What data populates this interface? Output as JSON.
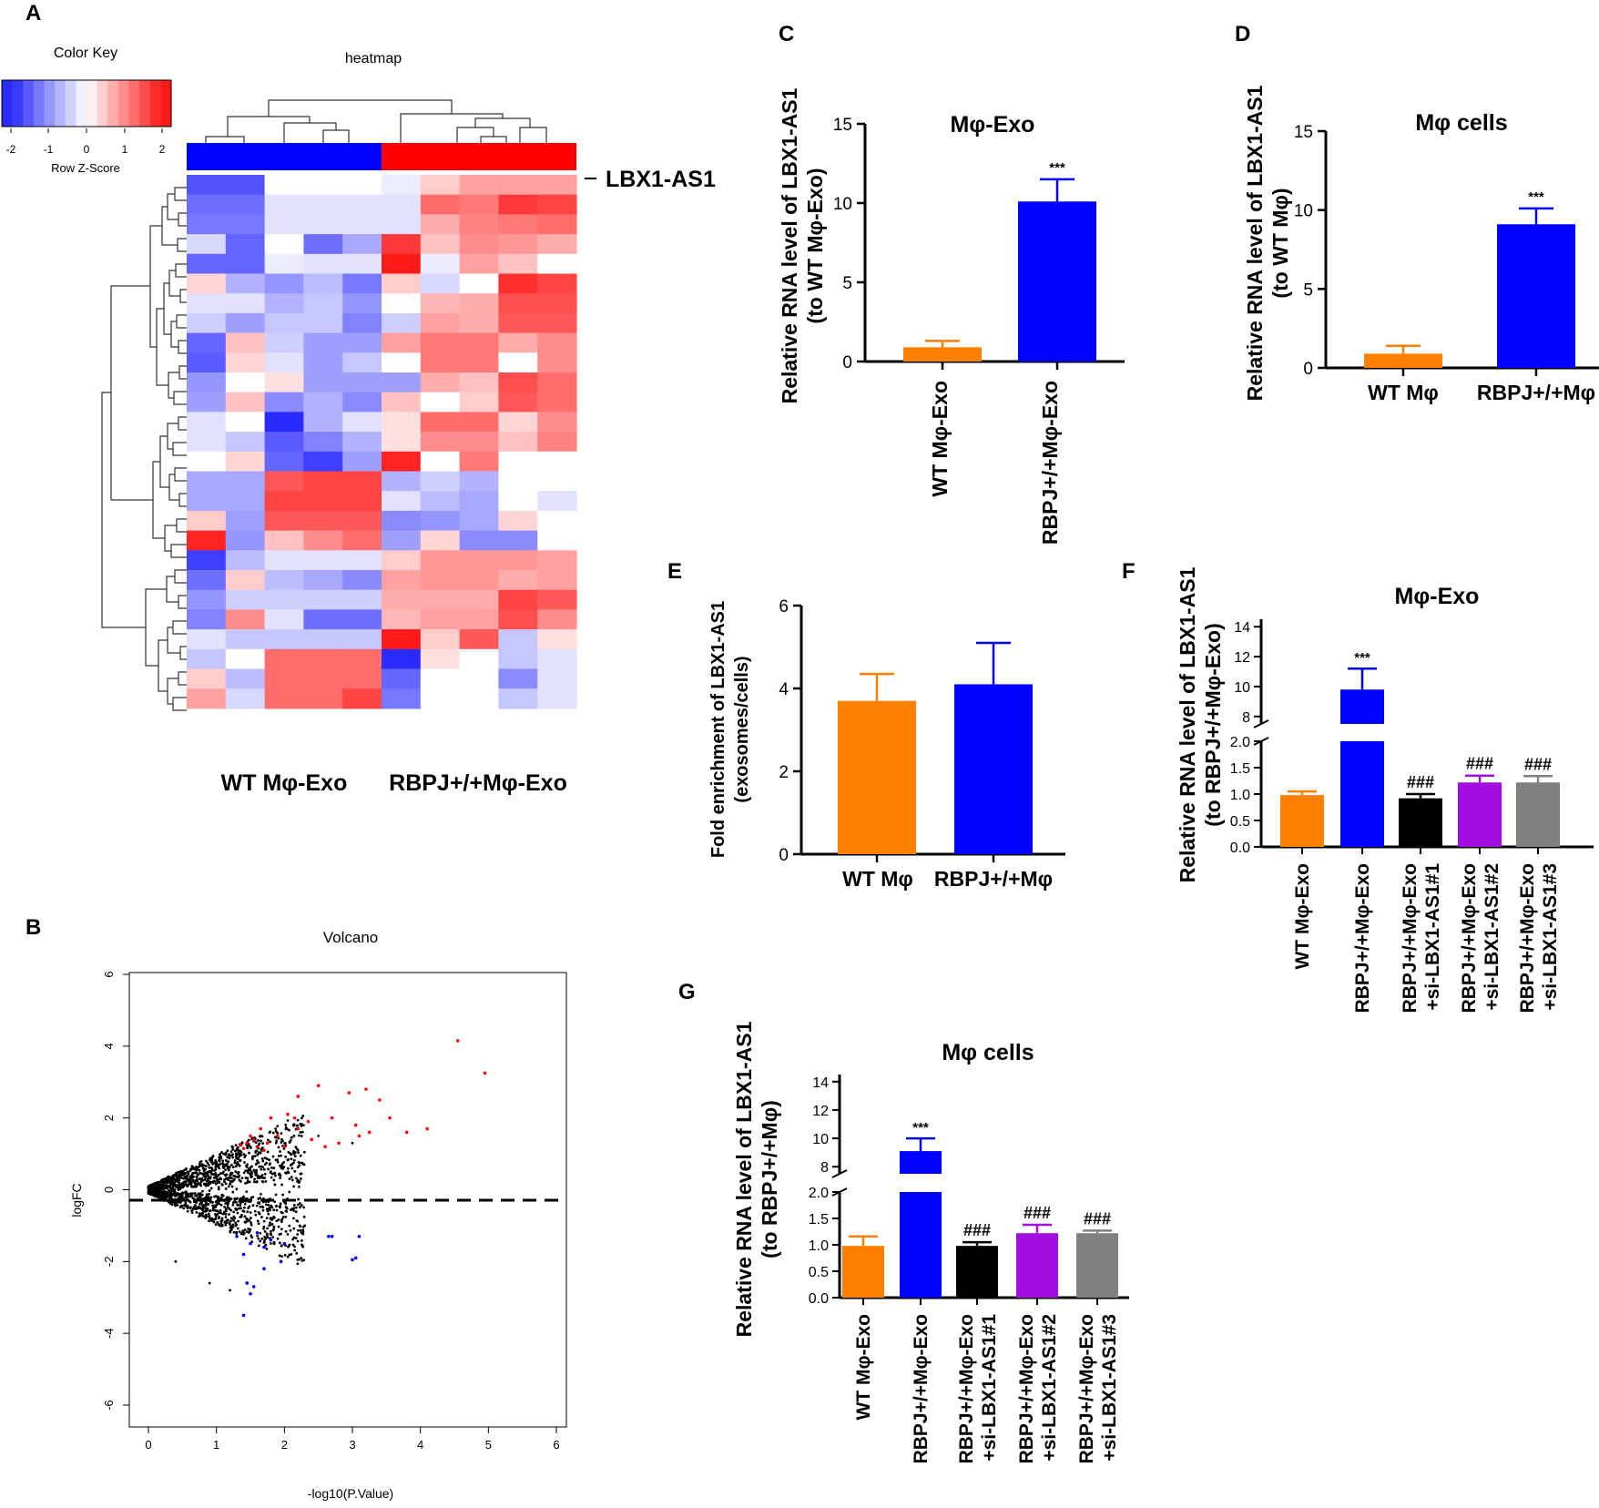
{
  "colors": {
    "orange": "#ff8000",
    "blue": "#0000ff",
    "black": "#000000",
    "purple": "#a40de0",
    "gray": "#808080",
    "heat_low": "#2b2bff",
    "heat_mid": "#ffffff",
    "heat_high": "#ff1a1a"
  },
  "panel_letters": [
    "A",
    "B",
    "C",
    "D",
    "E",
    "F",
    "G"
  ],
  "chart_data": [
    {
      "panel": "A",
      "type": "heatmap",
      "title": "heatmap",
      "color_key": {
        "title": "Color Key",
        "label": "Row Z-Score",
        "ticks": [
          "-2",
          "-1",
          "0",
          "1",
          "2"
        ],
        "range": [
          -2.5,
          2.5
        ]
      },
      "column_groups": [
        "WT Mφ-Exo",
        "RBPJ+/+Mφ-Exo"
      ],
      "highlighted_row_label": "LBX1-AS1",
      "n_columns": 10,
      "rows": [
        [
          -1.8,
          -1.8,
          0,
          0,
          0,
          -0.2,
          0.5,
          0.9,
          0.9,
          0.9
        ],
        [
          -1.5,
          -1.5,
          -0.3,
          -0.3,
          -0.3,
          -0.3,
          1.4,
          1.3,
          1.9,
          1.8
        ],
        [
          -1.4,
          -1.4,
          -0.3,
          -0.3,
          -0.3,
          -0.3,
          0.8,
          1.2,
          1.3,
          1.4
        ],
        [
          -0.4,
          -1.6,
          0,
          -1.5,
          -0.9,
          1.9,
          0.6,
          1.1,
          1.0,
          0.8
        ],
        [
          -1.6,
          -1.6,
          -0.2,
          -0.3,
          -0.3,
          2.2,
          -0.2,
          0.9,
          0.6,
          0
        ],
        [
          0.4,
          -0.8,
          -1.1,
          -0.7,
          -1.4,
          0.5,
          -0.4,
          0,
          2.0,
          1.8
        ],
        [
          -0.3,
          -0.3,
          -0.8,
          -0.6,
          -1.1,
          0,
          0.7,
          0.8,
          1.7,
          1.7
        ],
        [
          -0.5,
          -1.0,
          -0.6,
          -0.6,
          -1.3,
          -0.5,
          0.9,
          0.8,
          1.6,
          1.6
        ],
        [
          -1.6,
          0.6,
          -0.5,
          -1.0,
          -1.0,
          0.9,
          1.3,
          1.3,
          0.8,
          1.1
        ],
        [
          -1.7,
          0.4,
          -0.3,
          -1.0,
          -0.6,
          0,
          1.3,
          1.3,
          0,
          1.1
        ],
        [
          -1.1,
          0,
          0.3,
          -1.0,
          -1.0,
          -1.0,
          0.8,
          0.6,
          1.7,
          1.4
        ],
        [
          -1.0,
          0.6,
          -1.2,
          -0.8,
          -1.2,
          0.6,
          0,
          0.5,
          1.6,
          1.4
        ],
        [
          -0.3,
          0,
          -2.2,
          -0.8,
          -0.3,
          0.3,
          1.4,
          1.4,
          0.4,
          1.1
        ],
        [
          -0.3,
          -0.6,
          -1.7,
          -1.3,
          -0.8,
          0.3,
          1.1,
          1.1,
          0.6,
          1.2
        ],
        [
          0,
          0.4,
          -1.6,
          -2.0,
          -1.0,
          2.1,
          0,
          1.3,
          0,
          0
        ],
        [
          -0.9,
          -0.9,
          1.6,
          1.8,
          1.8,
          -0.8,
          -0.5,
          -0.8,
          0,
          0
        ],
        [
          -0.9,
          -0.9,
          1.8,
          1.8,
          1.8,
          -0.3,
          -0.7,
          -0.9,
          0,
          -0.3
        ],
        [
          0.5,
          -1.0,
          1.6,
          1.6,
          1.6,
          -1.2,
          -1.1,
          -0.9,
          0.4,
          0
        ],
        [
          2.1,
          -1.1,
          0.6,
          1.1,
          1.4,
          -1.0,
          0.4,
          -1.2,
          -1.2,
          0
        ],
        [
          -2.0,
          -0.7,
          -0.3,
          -0.3,
          -0.3,
          0.5,
          1.0,
          1.0,
          1.0,
          0.9
        ],
        [
          -1.5,
          0.5,
          -0.7,
          -0.9,
          -1.2,
          0.9,
          1.0,
          1.0,
          0.8,
          0.9
        ],
        [
          -1.1,
          -0.5,
          -0.5,
          -0.5,
          -0.5,
          0.8,
          0.8,
          0.8,
          1.8,
          1.6
        ],
        [
          -1.3,
          1.1,
          -0.3,
          -1.5,
          -1.5,
          0.7,
          0.9,
          0.9,
          1.7,
          1.1
        ],
        [
          -0.3,
          -0.6,
          -0.6,
          -0.6,
          -0.6,
          2.4,
          0.5,
          1.6,
          -0.6,
          0.3
        ],
        [
          -0.6,
          0,
          1.4,
          1.4,
          1.4,
          -2.2,
          0.3,
          0,
          -0.6,
          -0.3
        ],
        [
          0.5,
          -0.7,
          1.4,
          1.4,
          1.4,
          -1.6,
          0,
          0,
          -1.2,
          -0.3
        ],
        [
          0.9,
          -0.4,
          1.4,
          1.4,
          1.8,
          -1.4,
          0,
          0,
          -0.6,
          -0.3
        ]
      ]
    },
    {
      "panel": "B",
      "type": "scatter",
      "title": "Volcano",
      "xlabel": "-log10(P.Value)",
      "ylabel": "logFC",
      "xlim": [
        0,
        6
      ],
      "ylim": [
        -6,
        6
      ],
      "xticks": [
        "0",
        "1",
        "2",
        "3",
        "4",
        "5",
        "6"
      ],
      "yticks": [
        "-6",
        "-4",
        "-2",
        "0",
        "2",
        "4",
        "6"
      ],
      "reference_line_y": 0,
      "series": [
        {
          "name": "up",
          "color": "#ff0000",
          "points": [
            [
              4.55,
              4.15
            ],
            [
              4.95,
              3.25
            ],
            [
              3.55,
              2.0
            ],
            [
              3.8,
              1.6
            ],
            [
              4.1,
              1.7
            ],
            [
              3.2,
              2.8
            ],
            [
              3.4,
              2.5
            ],
            [
              2.95,
              2.7
            ],
            [
              2.5,
              2.9
            ],
            [
              2.8,
              1.3
            ],
            [
              2.6,
              1.2
            ],
            [
              2.2,
              2.6
            ],
            [
              2.05,
              2.1
            ],
            [
              2.15,
              2.0
            ],
            [
              2.2,
              1.7
            ],
            [
              1.9,
              1.5
            ],
            [
              1.75,
              1.3
            ],
            [
              1.6,
              1.2
            ],
            [
              1.45,
              1.3
            ],
            [
              1.35,
              1.25
            ],
            [
              1.4,
              1.15
            ],
            [
              1.55,
              1.4
            ],
            [
              1.65,
              1.7
            ],
            [
              1.8,
              2.0
            ],
            [
              2.35,
              1.9
            ],
            [
              2.4,
              1.4
            ],
            [
              3.05,
              1.8
            ],
            [
              3.25,
              1.6
            ],
            [
              3.1,
              1.5
            ],
            [
              2.7,
              2.0
            ],
            [
              1.5,
              1.5
            ],
            [
              1.7,
              1.1
            ],
            [
              2.0,
              1.2
            ]
          ]
        },
        {
          "name": "down",
          "color": "#0000ff",
          "points": [
            [
              1.4,
              -3.5
            ],
            [
              1.5,
              -2.9
            ],
            [
              1.55,
              -2.7
            ],
            [
              1.45,
              -2.6
            ],
            [
              1.7,
              -2.2
            ],
            [
              1.95,
              -2.0
            ],
            [
              3.0,
              -1.95
            ],
            [
              3.05,
              -1.9
            ],
            [
              2.65,
              -1.3
            ],
            [
              2.7,
              -1.3
            ],
            [
              3.1,
              -1.3
            ],
            [
              1.3,
              -1.3
            ],
            [
              1.5,
              -1.5
            ],
            [
              1.7,
              -1.6
            ],
            [
              1.8,
              -1.4
            ],
            [
              1.4,
              -1.8
            ],
            [
              1.6,
              -1.2
            ],
            [
              2.0,
              -1.5
            ]
          ]
        },
        {
          "name": "ns",
          "color": "#000000",
          "generated": true,
          "points": [
            [
              2.5,
              1.5
            ],
            [
              3.0,
              1.3
            ],
            [
              1.2,
              -2.8
            ],
            [
              0.9,
              -2.6
            ],
            [
              0.4,
              -2.0
            ],
            [
              2.1,
              -1.8
            ],
            [
              2.3,
              -1.0
            ]
          ]
        }
      ]
    },
    {
      "panel": "C",
      "type": "bar",
      "title": "Mφ-Exo",
      "ylabel": [
        "Relative RNA level of LBX1-AS1",
        "(to WT Mφ-Exo)"
      ],
      "categories": [
        "WT Mφ-Exo",
        "RBPJ+/+Mφ-Exo"
      ],
      "values": [
        0.9,
        10.1
      ],
      "errors": [
        0.4,
        1.4
      ],
      "colors": [
        "#ff8000",
        "#0000ff"
      ],
      "significance": [
        "",
        "***"
      ],
      "ylim": [
        0,
        15
      ],
      "yticks": [
        0,
        5,
        10,
        15
      ]
    },
    {
      "panel": "D",
      "type": "bar",
      "title": "Mφ cells",
      "ylabel": [
        "Relative RNA level of LBX1-AS1",
        "(to WT Mφ)"
      ],
      "categories": [
        "WT Mφ",
        "RBPJ+/+Mφ"
      ],
      "values": [
        0.9,
        9.1
      ],
      "errors": [
        0.5,
        1.0
      ],
      "colors": [
        "#ff8000",
        "#0000ff"
      ],
      "significance": [
        "",
        "***"
      ],
      "ylim": [
        0,
        15
      ],
      "yticks": [
        0,
        5,
        10,
        15
      ]
    },
    {
      "panel": "E",
      "type": "bar",
      "title": "",
      "ylabel": [
        "Fold enrichment of LBX1-AS1",
        "(exosomes/cells)"
      ],
      "categories": [
        "WT Mφ",
        "RBPJ+/+Mφ"
      ],
      "values": [
        3.7,
        4.1
      ],
      "errors": [
        0.65,
        1.0
      ],
      "colors": [
        "#ff8000",
        "#0000ff"
      ],
      "significance": [
        "",
        ""
      ],
      "ylim": [
        0,
        6
      ],
      "yticks": [
        0,
        2,
        4,
        6
      ]
    },
    {
      "panel": "F",
      "type": "bar",
      "title": "Mφ-Exo",
      "ylabel": [
        "Relative RNA level of LBX1-AS1",
        "(to RBPJ+/+Mφ-Exo)"
      ],
      "categories": [
        "WT Mφ-Exo",
        "RBPJ+/+Mφ-Exo",
        "RBPJ+/+Mφ-Exo +si-LBX1-AS1#1",
        "RBPJ+/+Mφ-Exo +si-LBX1-AS1#2",
        "RBPJ+/+Mφ-Exo +si-LBX1-AS1#3"
      ],
      "category_lines": [
        [
          "WT Mφ-Exo"
        ],
        [
          "RBPJ+/+Mφ-Exo"
        ],
        [
          "RBPJ+/+Mφ-Exo",
          "+si-LBX1-AS1#1"
        ],
        [
          "RBPJ+/+Mφ-Exo",
          "+si-LBX1-AS1#2"
        ],
        [
          "RBPJ+/+Mφ-Exo",
          "+si-LBX1-AS1#3"
        ]
      ],
      "values": [
        0.98,
        9.8,
        0.92,
        1.22,
        1.22
      ],
      "errors": [
        0.07,
        1.4,
        0.08,
        0.13,
        0.12
      ],
      "colors": [
        "#ff8000",
        "#0000ff",
        "#000000",
        "#a40de0",
        "#808080"
      ],
      "significance": [
        "",
        "***",
        "###",
        "###",
        "###"
      ],
      "broken_axis": {
        "lower": [
          0,
          2
        ],
        "upper": [
          7.5,
          14.5
        ]
      },
      "yticks_lower": [
        "0.0",
        "0.5",
        "1.0",
        "1.5",
        "2.0"
      ],
      "yticks_upper": [
        "8",
        "10",
        "12",
        "14"
      ]
    },
    {
      "panel": "G",
      "type": "bar",
      "title": "Mφ cells",
      "ylabel": [
        "Relative RNA level of LBX1-AS1",
        "(to RBPJ+/+Mφ)"
      ],
      "categories": [
        "WT Mφ-Exo",
        "RBPJ+/+Mφ-Exo",
        "RBPJ+/+Mφ-Exo +si-LBX1-AS1#1",
        "RBPJ+/+Mφ-Exo +si-LBX1-AS1#2",
        "RBPJ+/+Mφ-Exo +si-LBX1-AS1#3"
      ],
      "category_lines": [
        [
          "WT Mφ-Exo"
        ],
        [
          "RBPJ+/+Mφ-Exo"
        ],
        [
          "RBPJ+/+Mφ-Exo",
          "+si-LBX1-AS1#1"
        ],
        [
          "RBPJ+/+Mφ-Exo",
          "+si-LBX1-AS1#2"
        ],
        [
          "RBPJ+/+Mφ-Exo",
          "+si-LBX1-AS1#3"
        ]
      ],
      "values": [
        0.98,
        9.1,
        0.98,
        1.22,
        1.22
      ],
      "errors": [
        0.18,
        0.9,
        0.07,
        0.16,
        0.05
      ],
      "colors": [
        "#ff8000",
        "#0000ff",
        "#000000",
        "#a40de0",
        "#808080"
      ],
      "significance": [
        "",
        "***",
        "###",
        "###",
        "###"
      ],
      "broken_axis": {
        "lower": [
          0,
          2
        ],
        "upper": [
          7.5,
          14.5
        ]
      },
      "yticks_lower": [
        "0.0",
        "0.5",
        "1.0",
        "1.5",
        "2.0"
      ],
      "yticks_upper": [
        "8",
        "10",
        "12",
        "14"
      ]
    }
  ]
}
